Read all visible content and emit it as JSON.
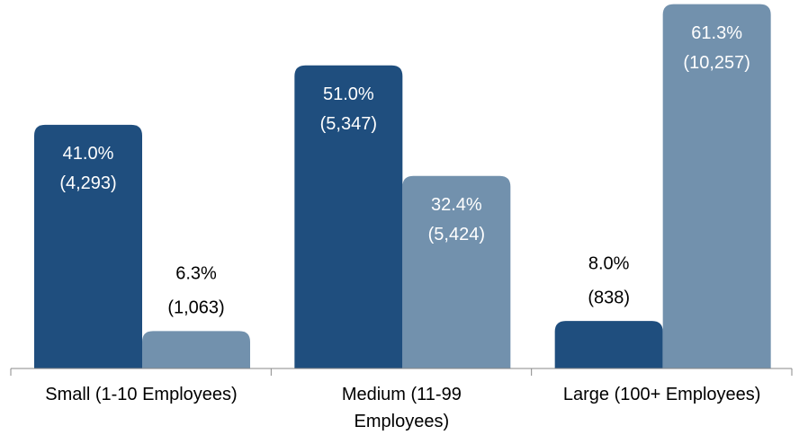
{
  "chart_data": {
    "type": "bar",
    "categories": [
      "Small (1-10 Employees)",
      "Medium (11-99\nEmployees)",
      "Large (100+ Employees)"
    ],
    "series": [
      {
        "color": "#1f4e7e",
        "values": [
          41.0,
          51.0,
          8.0
        ],
        "value_labels": [
          "41.0%",
          "51.0%",
          "8.0%"
        ],
        "counts": [
          4293,
          5347,
          838
        ],
        "count_labels": [
          "(4,293)",
          "(5,347)",
          "(838)"
        ]
      },
      {
        "color": "#7291ad",
        "values": [
          6.3,
          32.4,
          61.3
        ],
        "value_labels": [
          "6.3%",
          "32.4%",
          "61.3%"
        ],
        "counts": [
          1063,
          5424,
          10257
        ],
        "count_labels": [
          "(1,063)",
          "(5,424)",
          "(10,257)"
        ]
      }
    ],
    "ylim": [
      0,
      62
    ]
  }
}
